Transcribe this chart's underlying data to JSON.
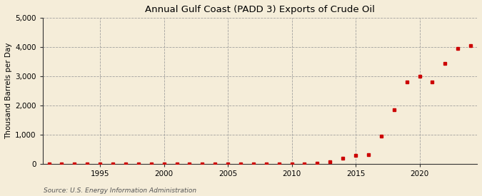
{
  "title": "Annual Gulf Coast (PADD 3) Exports of Crude Oil",
  "ylabel": "Thousand Barrels per Day",
  "source": "Source: U.S. Energy Information Administration",
  "background_color": "#f5edd9",
  "plot_background": "#f5edd9",
  "marker_color": "#cc0000",
  "xlim": [
    1990.5,
    2024.5
  ],
  "ylim": [
    0,
    5000
  ],
  "yticks": [
    0,
    1000,
    2000,
    3000,
    4000,
    5000
  ],
  "xticks": [
    1995,
    2000,
    2005,
    2010,
    2015,
    2020
  ],
  "data": {
    "1991": 3,
    "1992": 3,
    "1993": 2,
    "1994": 2,
    "1995": 2,
    "1996": 4,
    "1997": 3,
    "1998": 3,
    "1999": 2,
    "2000": 2,
    "2001": 2,
    "2002": 3,
    "2003": 3,
    "2004": 2,
    "2005": 2,
    "2006": 2,
    "2007": 2,
    "2008": 2,
    "2009": 2,
    "2010": 2,
    "2011": 4,
    "2012": 15,
    "2013": 60,
    "2014": 180,
    "2015": 300,
    "2016": 310,
    "2017": 950,
    "2018": 1850,
    "2019": 2800,
    "2020": 3000,
    "2021": 2800,
    "2022": 3450,
    "2023": 3950,
    "2024": 4050
  }
}
